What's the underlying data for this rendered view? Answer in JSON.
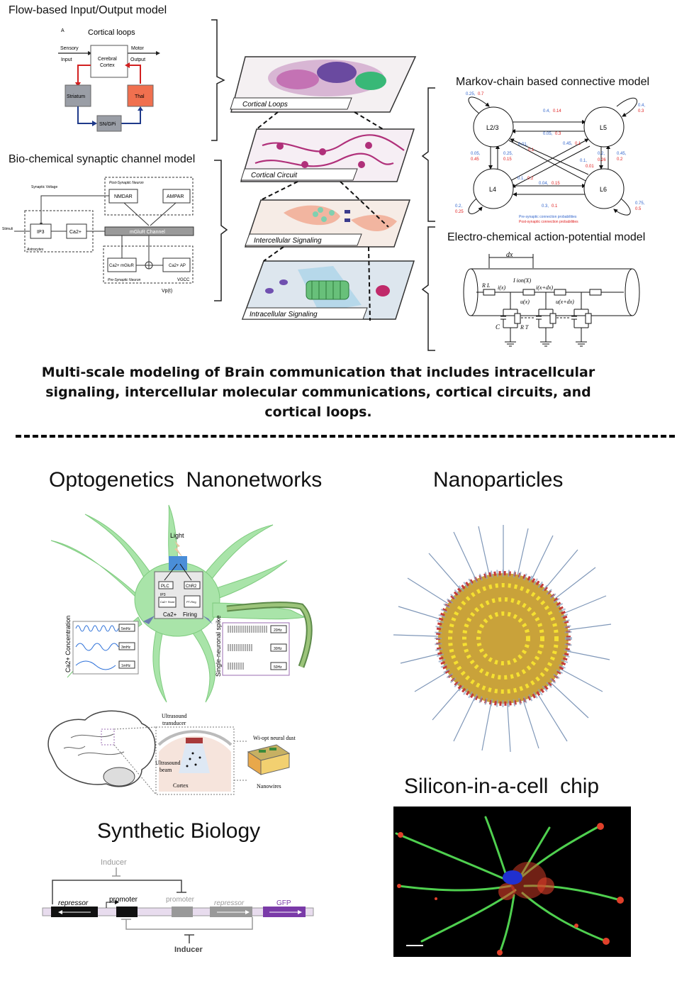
{
  "top": {
    "flow_title": "Flow-based Input/Output model",
    "flow": {
      "panel_letter": "A",
      "cortical_loops": "Cortical loops",
      "sensory": "Sensory",
      "input": "Input",
      "motor": "Motor",
      "output": "Output",
      "cerebral": "Cerebral",
      "cortex": "Cortex",
      "striatum": "Striatum",
      "thal": "Thal",
      "sngpi": "SN/GPi"
    },
    "biochem_title": "Bio-chemical synaptic channel model",
    "biochem": {
      "synaptic_voltage": "Synaptic Voltage",
      "post_synaptic": "Post-Synaptic Neuron",
      "nmdar": "NMDAR",
      "ampar": "AMPAR",
      "stimuli": "Stimuli",
      "ip3": "IP3",
      "ca2": "Ca2+",
      "mglur": "mGluR Channel",
      "astrocytes": "Astrocytes",
      "ca2_mglur": "Ca2+ mGluR",
      "ca2_ap": "Ca2+ AP",
      "pre_synaptic": "Pre-Synaptic Neuron",
      "vgcc": "VGCC",
      "vp": "Vp(t)"
    },
    "layers": [
      "Cortical Loops",
      "Cortical Circuit",
      "Intercellular Signaling",
      "Intracellular Signaling"
    ],
    "markov_title": "Markov-chain based connective model",
    "markov": {
      "nodes": [
        "L2/3",
        "L5",
        "L4",
        "L6"
      ],
      "legend_pre": "Pre-synaptic connection probabilities",
      "legend_post": "Post-synaptic connection probabilities",
      "probs": [
        {
          "pre": "0.25,",
          "post": "0.7"
        },
        {
          "pre": "0.4,",
          "post": "0.3"
        },
        {
          "pre": "0.4,",
          "post": "0.14"
        },
        {
          "pre": "0.05,",
          "post": "0.3"
        },
        {
          "pre": "0.45,",
          "post": "0.1"
        },
        {
          "pre": "0.05,",
          "post": "0.45"
        },
        {
          "pre": "0.25,",
          "post": "0.15"
        },
        {
          "pre": "0.01,",
          "post": "0.1"
        },
        {
          "pre": "0.1,",
          "post": "0.01"
        },
        {
          "pre": "0.2,",
          "post": "0.26"
        },
        {
          "pre": "0.45,",
          "post": "0.2"
        },
        {
          "pre": "0.1,",
          "post": "0.2"
        },
        {
          "pre": "0.04,",
          "post": "0.15"
        },
        {
          "pre": "0.3,",
          "post": "0.1"
        },
        {
          "pre": "0.2,",
          "post": "0.25"
        },
        {
          "pre": "0.75,",
          "post": "0.5"
        }
      ]
    },
    "electro_title": "Electro-chemical action-potential model",
    "electro": {
      "dx": "dx",
      "ion": "I ion(X)",
      "rl": "R L",
      "ix": "i(x)",
      "ixdx": "i(x+dx)",
      "ux": "u(x)",
      "uxdx": "u(x+dx)",
      "c": "C",
      "rt": "R T"
    },
    "caption": "Multi-scale modeling of Brain communication that includes intracellcular signaling, intercellular molecular communications, cortical circuits, and cortical loops."
  },
  "bottom": {
    "opto_title": "Optogenetics  Nanonetworks",
    "nano_title": "Nanoparticles",
    "silicon_title": "Silicon-in-a-cell  chip",
    "synbio_title": "Synthetic Biology",
    "opto": {
      "light": "Light",
      "plc": "PLC",
      "ip3": "IP3",
      "ca_store": "Ca2+ Store",
      "chr2": "ChR2",
      "ptreg": "PT-Reg",
      "ca_out": "Ca2+",
      "firing": "Firing",
      "ca_axis": "Ca2+ Concentration",
      "spike_axis": "Single-neuronal spike",
      "freqs_ca": [
        "5mHz",
        "3mHz",
        "1mHz"
      ],
      "freqs_spk": [
        "20Hz",
        "30Hz",
        "50Hz"
      ]
    },
    "dust": {
      "transducer": "Ultrasound transducer",
      "beam": "Ultrasound beam",
      "wiopt": "Wi-opt neural dust",
      "cortex": "Cortex",
      "nanowires": "Nanowires"
    },
    "synbio": {
      "inducer_top": "Inducer",
      "inducer_bottom": "Inducer",
      "repressor1": "repressor",
      "promoter1": "promoter",
      "promoter2": "promoter",
      "repressor2": "repressor",
      "gfp": "GFP"
    }
  },
  "colors": {
    "striatum": "#9a9ea6",
    "thal": "#f0704f",
    "red_arrow": "#d22020",
    "blue_arrow": "#1f3a8a",
    "neuron_green": "#a9e4a9",
    "gfp": "#7a3aa8",
    "pre_prob": "#3366cc",
    "post_prob": "#e02020"
  }
}
